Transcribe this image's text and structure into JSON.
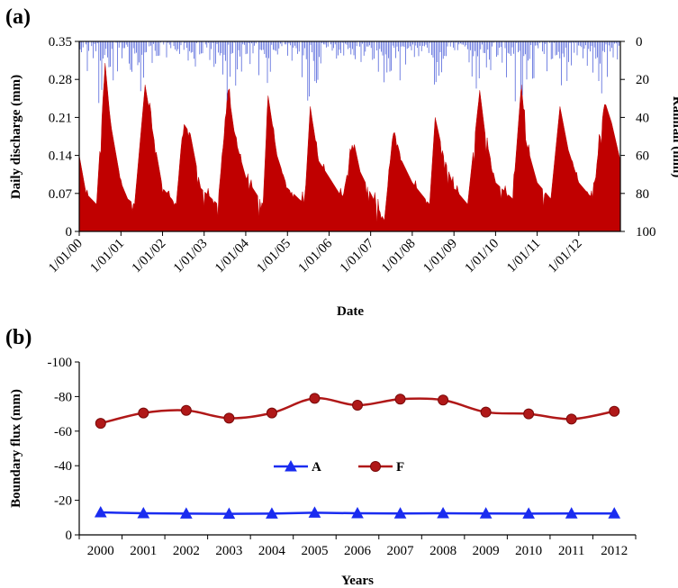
{
  "colors": {
    "discharge": "#c00000",
    "rainfall": "#3a4fd6",
    "series_A": "#1a2cf0",
    "series_F": "#b01818",
    "axis": "#000000"
  },
  "chart_data": [
    {
      "panel": "(a)",
      "type": "area",
      "xlabel": "Date",
      "ylabel": "Daily discharge (mm)",
      "y2label": "Rainfall (mm)",
      "x_range": [
        "2000-01-01",
        "2012-12-31"
      ],
      "ylim": [
        0,
        0.35
      ],
      "y2lim": [
        100,
        0
      ],
      "y2_inverted": true,
      "yticks": [
        "0",
        "0.07",
        "0.14",
        "0.21",
        "0.28",
        "0.35"
      ],
      "y2ticks": [
        "0",
        "20",
        "40",
        "60",
        "80",
        "100"
      ],
      "xticks": [
        "1/01/00",
        "1/01/01",
        "1/01/02",
        "1/01/03",
        "1/01/04",
        "1/01/05",
        "1/01/06",
        "1/01/07",
        "1/01/08",
        "1/01/09",
        "1/01/10",
        "1/01/11",
        "1/01/12"
      ],
      "series": [
        {
          "name": "Daily discharge",
          "type": "area",
          "points": [
            [
              "2000-01-01",
              0.14
            ],
            [
              "2000-03-01",
              0.07
            ],
            [
              "2000-06-01",
              0.05
            ],
            [
              "2000-08-15",
              0.31
            ],
            [
              "2000-10-01",
              0.2
            ],
            [
              "2001-01-01",
              0.09
            ],
            [
              "2001-03-01",
              0.06
            ],
            [
              "2001-05-01",
              0.05
            ],
            [
              "2001-08-01",
              0.27
            ],
            [
              "2001-10-01",
              0.19
            ],
            [
              "2002-01-01",
              0.08
            ],
            [
              "2002-05-01",
              0.05
            ],
            [
              "2002-07-01",
              0.2
            ],
            [
              "2002-09-01",
              0.18
            ],
            [
              "2002-12-01",
              0.08
            ],
            [
              "2003-05-01",
              0.05
            ],
            [
              "2003-08-01",
              0.26
            ],
            [
              "2003-10-01",
              0.17
            ],
            [
              "2004-01-01",
              0.1
            ],
            [
              "2004-06-01",
              0.05
            ],
            [
              "2004-07-15",
              0.25
            ],
            [
              "2004-10-01",
              0.14
            ],
            [
              "2005-01-01",
              0.08
            ],
            [
              "2005-06-01",
              0.05
            ],
            [
              "2005-07-20",
              0.23
            ],
            [
              "2005-10-01",
              0.13
            ],
            [
              "2006-01-01",
              0.1
            ],
            [
              "2006-05-01",
              0.06
            ],
            [
              "2006-08-01",
              0.17
            ],
            [
              "2006-10-01",
              0.11
            ],
            [
              "2007-01-01",
              0.07
            ],
            [
              "2007-05-01",
              0.02
            ],
            [
              "2007-07-20",
              0.19
            ],
            [
              "2007-10-01",
              0.13
            ],
            [
              "2008-01-01",
              0.09
            ],
            [
              "2008-06-01",
              0.05
            ],
            [
              "2008-07-20",
              0.21
            ],
            [
              "2008-10-01",
              0.14
            ],
            [
              "2009-01-01",
              0.08
            ],
            [
              "2009-05-01",
              0.05
            ],
            [
              "2009-08-15",
              0.26
            ],
            [
              "2009-10-01",
              0.18
            ],
            [
              "2010-01-01",
              0.09
            ],
            [
              "2010-06-01",
              0.06
            ],
            [
              "2010-08-15",
              0.27
            ],
            [
              "2010-10-01",
              0.16
            ],
            [
              "2011-01-01",
              0.09
            ],
            [
              "2011-05-01",
              0.06
            ],
            [
              "2011-07-20",
              0.23
            ],
            [
              "2011-10-01",
              0.15
            ],
            [
              "2012-01-01",
              0.09
            ],
            [
              "2012-05-01",
              0.06
            ],
            [
              "2012-08-15",
              0.24
            ],
            [
              "2012-10-15",
              0.2
            ],
            [
              "2012-12-31",
              0.13
            ]
          ]
        },
        {
          "name": "Rainfall",
          "type": "bar",
          "axis": "y2",
          "peaks": [
            [
              "2000-08-01",
              42
            ],
            [
              "2001-06-15",
              28
            ],
            [
              "2002-07-01",
              30
            ],
            [
              "2003-08-01",
              35
            ],
            [
              "2004-06-15",
              26
            ],
            [
              "2005-07-01",
              32
            ],
            [
              "2006-07-01",
              28
            ],
            [
              "2007-06-15",
              34
            ],
            [
              "2008-07-01",
              27
            ],
            [
              "2009-08-01",
              29
            ],
            [
              "2010-08-01",
              42
            ],
            [
              "2011-06-15",
              36
            ],
            [
              "2012-07-01",
              30
            ]
          ]
        }
      ]
    },
    {
      "panel": "(b)",
      "type": "line",
      "xlabel": "Years",
      "ylabel": "Boundary flux (mm)",
      "categories": [
        "2000",
        "2001",
        "2002",
        "2003",
        "2004",
        "2005",
        "2006",
        "2007",
        "2008",
        "2009",
        "2010",
        "2011",
        "2012"
      ],
      "ylim": [
        0,
        -100
      ],
      "y_inverted": true,
      "yticks": [
        "0",
        "-20",
        "-40",
        "-60",
        "-80",
        "-100"
      ],
      "legend": "center",
      "series": [
        {
          "name": "A",
          "marker": "triangle",
          "values": [
            -13,
            -12.5,
            -12.3,
            -12.2,
            -12.3,
            -12.8,
            -12.5,
            -12.4,
            -12.5,
            -12.4,
            -12.3,
            -12.4,
            -12.4
          ]
        },
        {
          "name": "F",
          "marker": "circle",
          "values": [
            -64.5,
            -70.5,
            -72,
            -67.5,
            -70.5,
            -79,
            -75,
            -78.5,
            -78,
            -71,
            -70,
            -67,
            -71.5
          ]
        }
      ]
    }
  ]
}
